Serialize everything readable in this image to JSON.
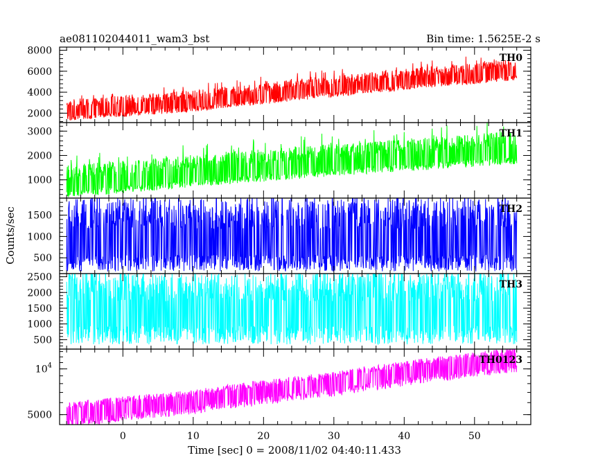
{
  "header": {
    "title": "ae081102044011_wam3_bst",
    "bin_time": "Bin time: 1.5625E-2 s"
  },
  "chart_data": {
    "type": "line",
    "xlabel": "Time [sec] 0 = 2008/11/02 04:40:11.433",
    "ylabel": "Counts/sec",
    "xlim": [
      -9,
      58
    ],
    "x_ticks": [
      0,
      10,
      20,
      30,
      40,
      50
    ],
    "x_range_data": [
      -8.0,
      56.0
    ],
    "grid": false,
    "panels": [
      {
        "name": "TH0",
        "color": "#ff0000",
        "scale": "linear",
        "ylim": [
          1100,
          8300
        ],
        "yticks": [
          2000,
          4000,
          6000,
          8000
        ],
        "ytick_labels": [
          "2000",
          "4000",
          "6000",
          "8000"
        ],
        "trend": [
          [
            -8,
            2000
          ],
          [
            10,
            2900
          ],
          [
            30,
            4300
          ],
          [
            56,
            5900
          ]
        ],
        "noise_low": 750,
        "noise_high": 1300
      },
      {
        "name": "TH1",
        "color": "#00ff00",
        "scale": "linear",
        "ylim": [
          250,
          3350
        ],
        "yticks": [
          1000,
          2000,
          3000
        ],
        "ytick_labels": [
          "1000",
          "2000",
          "3000"
        ],
        "trend": [
          [
            -8,
            700
          ],
          [
            10,
            1150
          ],
          [
            30,
            1600
          ],
          [
            56,
            2100
          ]
        ],
        "noise_low": 450,
        "noise_high": 900
      },
      {
        "name": "TH2",
        "color": "#0000ff",
        "scale": "linear",
        "ylim": [
          130,
          1900
        ],
        "yticks": [
          500,
          1000,
          1500
        ],
        "ytick_labels": [
          "500",
          "1000",
          "1500"
        ],
        "trend": [
          [
            -8,
            780
          ],
          [
            56,
            780
          ]
        ],
        "noise_low": 600,
        "noise_high": 1100
      },
      {
        "name": "TH3",
        "color": "#00ffff",
        "scale": "linear",
        "ylim": [
          200,
          2600
        ],
        "yticks": [
          500,
          1000,
          1500,
          2000,
          2500
        ],
        "ytick_labels": [
          "500",
          "1000",
          "1500",
          "2000",
          "2500"
        ],
        "trend": [
          [
            -8,
            1250
          ],
          [
            56,
            1250
          ]
        ],
        "noise_low": 900,
        "noise_high": 1350
      },
      {
        "name": "TH0123",
        "color": "#ff00ff",
        "scale": "log",
        "ylim": [
          4300,
          13500
        ],
        "yticks": [
          5000,
          10000
        ],
        "ytick_labels": [
          "5000",
          "10^4"
        ],
        "trend": [
          [
            -8,
            5000
          ],
          [
            10,
            6100
          ],
          [
            30,
            8000
          ],
          [
            56,
            11600
          ]
        ],
        "noise_low": 0.18,
        "noise_high": 0.2
      }
    ]
  }
}
